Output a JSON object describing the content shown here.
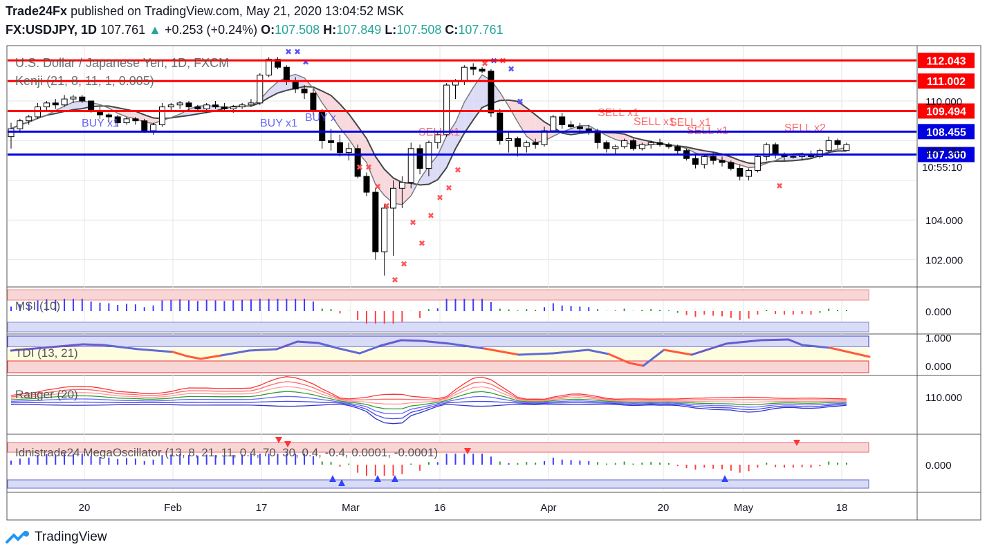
{
  "header": {
    "publisher": "Trade24Fx",
    "published_text": "published on TradingView.com, May 21, 2020 13:04:52 MSK",
    "symbol": "FX:USDJPY, 1D",
    "last": "107.761",
    "change_arrow": "▲",
    "change": "+0.253 (+0.24%)",
    "o_label": "O:",
    "o_value": "107.508",
    "h_label": "H:",
    "h_value": "107.849",
    "l_label": "L:",
    "l_value": "107.508",
    "c_label": "C:",
    "c_value": "107.761"
  },
  "colors": {
    "up": "#26a69a",
    "red": "#ff0000",
    "blue": "#0000e0",
    "grid": "#e6e6e6",
    "axis_text": "#131722"
  },
  "chart_data": [
    {
      "type": "candlestick",
      "title": "U.S. Dollar / Japanese Yen, 1D, FXCM",
      "indicator": "Kenji (21, 8, 11, 1, 0.005)",
      "y_ticks": [
        "110.000",
        "104.000",
        "102.000"
      ],
      "x_ticks": [
        "20",
        "Feb",
        "17",
        "Mar",
        "16",
        "Apr",
        "20",
        "May",
        "18"
      ],
      "horizontal_levels": [
        {
          "value": 112.043,
          "label": "112.043",
          "color": "red"
        },
        {
          "value": 111.002,
          "label": "111.002",
          "color": "red"
        },
        {
          "value": 109.494,
          "label": "109.494",
          "color": "red"
        },
        {
          "value": 108.455,
          "label": "108.455",
          "color": "blue"
        },
        {
          "value": 107.3,
          "label": "107.300",
          "color": "blue"
        }
      ],
      "last_price_label": "107.761",
      "countdown_label": "10:55:10",
      "signals": [
        "BUY x1",
        "BUY x1",
        "BUY x",
        "SELL x1",
        "SELL x1",
        "SELL x1",
        "SELL x1",
        "SELL x1",
        "SELL x2"
      ],
      "candles": [
        [
          108.2,
          108.9,
          107.6,
          108.6
        ],
        [
          108.6,
          109.1,
          108.4,
          109.0
        ],
        [
          109.0,
          109.3,
          108.8,
          109.2
        ],
        [
          109.2,
          109.9,
          109.1,
          109.7
        ],
        [
          109.7,
          110.0,
          109.5,
          109.9
        ],
        [
          109.9,
          110.1,
          109.6,
          109.8
        ],
        [
          109.8,
          110.3,
          109.7,
          110.1
        ],
        [
          110.1,
          110.3,
          109.9,
          110.2
        ],
        [
          110.2,
          110.3,
          109.9,
          110.0
        ],
        [
          110.0,
          110.0,
          109.4,
          109.5
        ],
        [
          109.5,
          109.7,
          109.1,
          109.3
        ],
        [
          109.3,
          109.4,
          108.9,
          109.2
        ],
        [
          109.2,
          109.3,
          108.7,
          108.9
        ],
        [
          108.9,
          109.2,
          108.8,
          109.1
        ],
        [
          109.1,
          109.2,
          108.8,
          109.0
        ],
        [
          109.0,
          109.1,
          108.4,
          108.5
        ],
        [
          108.5,
          108.9,
          108.3,
          108.8
        ],
        [
          108.8,
          109.9,
          108.7,
          109.7
        ],
        [
          109.7,
          109.9,
          109.5,
          109.8
        ],
        [
          109.8,
          110.0,
          109.6,
          109.9
        ],
        [
          109.9,
          110.0,
          109.5,
          109.7
        ],
        [
          109.7,
          109.8,
          109.5,
          109.6
        ],
        [
          109.6,
          109.9,
          109.4,
          109.8
        ],
        [
          109.8,
          110.0,
          109.6,
          109.7
        ],
        [
          109.7,
          109.9,
          109.5,
          109.6
        ],
        [
          109.6,
          109.8,
          109.4,
          109.7
        ],
        [
          109.7,
          109.9,
          109.6,
          109.8
        ],
        [
          109.8,
          110.1,
          109.7,
          109.9
        ],
        [
          109.9,
          111.4,
          109.8,
          111.3
        ],
        [
          111.3,
          112.2,
          111.2,
          112.1
        ],
        [
          112.1,
          112.2,
          111.6,
          111.7
        ],
        [
          111.7,
          111.8,
          110.8,
          111.0
        ],
        [
          111.0,
          111.2,
          110.4,
          110.6
        ],
        [
          110.6,
          110.8,
          110.1,
          110.4
        ],
        [
          110.4,
          110.6,
          109.3,
          109.5
        ],
        [
          109.5,
          109.6,
          107.6,
          108.0
        ],
        [
          108.0,
          108.6,
          107.5,
          107.9
        ],
        [
          107.9,
          108.3,
          107.2,
          107.4
        ],
        [
          107.4,
          107.9,
          107.0,
          107.6
        ],
        [
          107.6,
          107.8,
          106.1,
          106.2
        ],
        [
          106.2,
          106.4,
          105.2,
          105.4
        ],
        [
          105.4,
          105.6,
          102.0,
          102.4
        ],
        [
          102.4,
          104.8,
          101.2,
          104.6
        ],
        [
          104.6,
          106.0,
          102.2,
          105.6
        ],
        [
          105.6,
          106.2,
          104.6,
          105.9
        ],
        [
          105.9,
          107.9,
          105.6,
          107.6
        ],
        [
          107.6,
          107.8,
          106.3,
          106.6
        ],
        [
          106.6,
          108.0,
          106.2,
          107.9
        ],
        [
          107.9,
          108.5,
          107.6,
          108.3
        ],
        [
          108.3,
          110.9,
          108.2,
          110.8
        ],
        [
          110.8,
          111.1,
          110.1,
          111.0
        ],
        [
          111.0,
          111.8,
          110.8,
          111.7
        ],
        [
          111.7,
          111.9,
          111.3,
          111.6
        ],
        [
          111.6,
          111.7,
          111.4,
          111.5
        ],
        [
          111.5,
          111.6,
          109.2,
          109.4
        ],
        [
          109.4,
          109.6,
          107.8,
          108.0
        ],
        [
          108.0,
          108.5,
          107.4,
          108.1
        ],
        [
          108.1,
          108.2,
          107.2,
          107.7
        ],
        [
          107.7,
          108.0,
          107.4,
          107.9
        ],
        [
          107.9,
          108.1,
          107.6,
          107.8
        ],
        [
          107.8,
          108.7,
          107.7,
          108.5
        ],
        [
          108.5,
          109.3,
          108.4,
          109.2
        ],
        [
          109.2,
          109.4,
          108.6,
          108.8
        ],
        [
          108.8,
          109.0,
          108.6,
          108.7
        ],
        [
          108.7,
          108.9,
          108.4,
          108.6
        ],
        [
          108.6,
          108.8,
          108.3,
          108.5
        ],
        [
          108.5,
          108.6,
          107.6,
          107.9
        ],
        [
          107.9,
          108.0,
          107.4,
          107.6
        ],
        [
          107.6,
          107.8,
          107.3,
          107.7
        ],
        [
          107.7,
          108.1,
          107.6,
          108.0
        ],
        [
          108.0,
          108.1,
          107.5,
          107.6
        ],
        [
          107.6,
          107.9,
          107.5,
          107.8
        ],
        [
          107.8,
          108.0,
          107.6,
          107.9
        ],
        [
          107.9,
          108.1,
          107.7,
          107.8
        ],
        [
          107.8,
          107.9,
          107.6,
          107.7
        ],
        [
          107.7,
          107.8,
          107.3,
          107.5
        ],
        [
          107.5,
          107.6,
          107.0,
          107.1
        ],
        [
          107.1,
          107.3,
          106.6,
          106.8
        ],
        [
          106.8,
          107.3,
          106.6,
          107.2
        ],
        [
          107.2,
          107.4,
          106.8,
          107.0
        ],
        [
          107.0,
          107.2,
          106.7,
          106.9
        ],
        [
          106.9,
          107.0,
          106.5,
          106.6
        ],
        [
          106.6,
          106.8,
          106.0,
          106.2
        ],
        [
          106.2,
          106.6,
          106.0,
          106.5
        ],
        [
          106.5,
          107.3,
          106.4,
          107.2
        ],
        [
          107.2,
          107.9,
          107.0,
          107.8
        ],
        [
          107.8,
          107.9,
          107.1,
          107.3
        ],
        [
          107.3,
          107.4,
          107.0,
          107.2
        ],
        [
          107.2,
          107.3,
          107.1,
          107.2
        ],
        [
          107.2,
          107.4,
          107.0,
          107.3
        ],
        [
          107.3,
          107.5,
          107.1,
          107.2
        ],
        [
          107.2,
          107.6,
          107.1,
          107.5
        ],
        [
          107.5,
          108.2,
          107.4,
          108.0
        ],
        [
          108.0,
          108.1,
          107.6,
          107.8
        ],
        [
          107.5,
          107.9,
          107.5,
          107.8
        ]
      ]
    },
    {
      "type": "bar",
      "title": "MSI (10)",
      "y_ticks": [
        "0.000"
      ]
    },
    {
      "type": "line",
      "title": "TDI (13, 21)",
      "y_ticks": [
        "1.000",
        "0.000"
      ]
    },
    {
      "type": "line",
      "title": "Ranger (20)",
      "y_ticks": [
        "110.000"
      ]
    },
    {
      "type": "bar",
      "title": "Idnistrade24 MegaOscillator (13, 8, 21, 11, 0.4, 70, 30, 0.4, -0.4, 0.0001, -0.0001)",
      "y_ticks": [
        "0.000"
      ]
    }
  ],
  "footer": {
    "brand": "TradingView"
  }
}
